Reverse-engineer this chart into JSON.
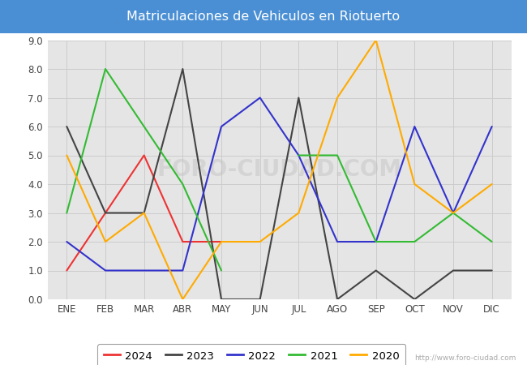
{
  "title": "Matriculaciones de Vehiculos en Riotuerto",
  "title_color": "white",
  "title_bg_color": "#4a8fd4",
  "months": [
    "ENE",
    "FEB",
    "MAR",
    "ABR",
    "MAY",
    "JUN",
    "JUL",
    "AGO",
    "SEP",
    "OCT",
    "NOV",
    "DIC"
  ],
  "ylim": [
    0.0,
    9.0
  ],
  "yticks": [
    0.0,
    1.0,
    2.0,
    3.0,
    4.0,
    5.0,
    6.0,
    7.0,
    8.0,
    9.0
  ],
  "series": {
    "2024": {
      "color": "#ee3333",
      "data": [
        1.0,
        3.0,
        5.0,
        2.0,
        2.0,
        null,
        null,
        null,
        null,
        null,
        null,
        null
      ]
    },
    "2023": {
      "color": "#444444",
      "data": [
        6.0,
        3.0,
        3.0,
        8.0,
        0.0,
        0.0,
        7.0,
        0.0,
        1.0,
        0.0,
        1.0,
        1.0
      ]
    },
    "2022": {
      "color": "#3333cc",
      "data": [
        2.0,
        1.0,
        1.0,
        1.0,
        6.0,
        7.0,
        5.0,
        2.0,
        2.0,
        6.0,
        3.0,
        6.0
      ]
    },
    "2021": {
      "color": "#33bb33",
      "data": [
        3.0,
        8.0,
        6.0,
        4.0,
        1.0,
        null,
        5.0,
        5.0,
        2.0,
        2.0,
        3.0,
        2.0
      ]
    },
    "2020": {
      "color": "#ffaa00",
      "data": [
        5.0,
        2.0,
        3.0,
        0.0,
        2.0,
        2.0,
        3.0,
        7.0,
        9.0,
        4.0,
        3.0,
        4.0
      ]
    }
  },
  "legend_order": [
    "2024",
    "2023",
    "2022",
    "2021",
    "2020"
  ],
  "grid_color": "#cccccc",
  "plot_bg_color": "#e5e5e5",
  "url_text": "http://www.foro-ciudad.com",
  "watermark": "FORO-CIUDAD.COM",
  "figsize": [
    6.5,
    4.5
  ],
  "dpi": 100
}
